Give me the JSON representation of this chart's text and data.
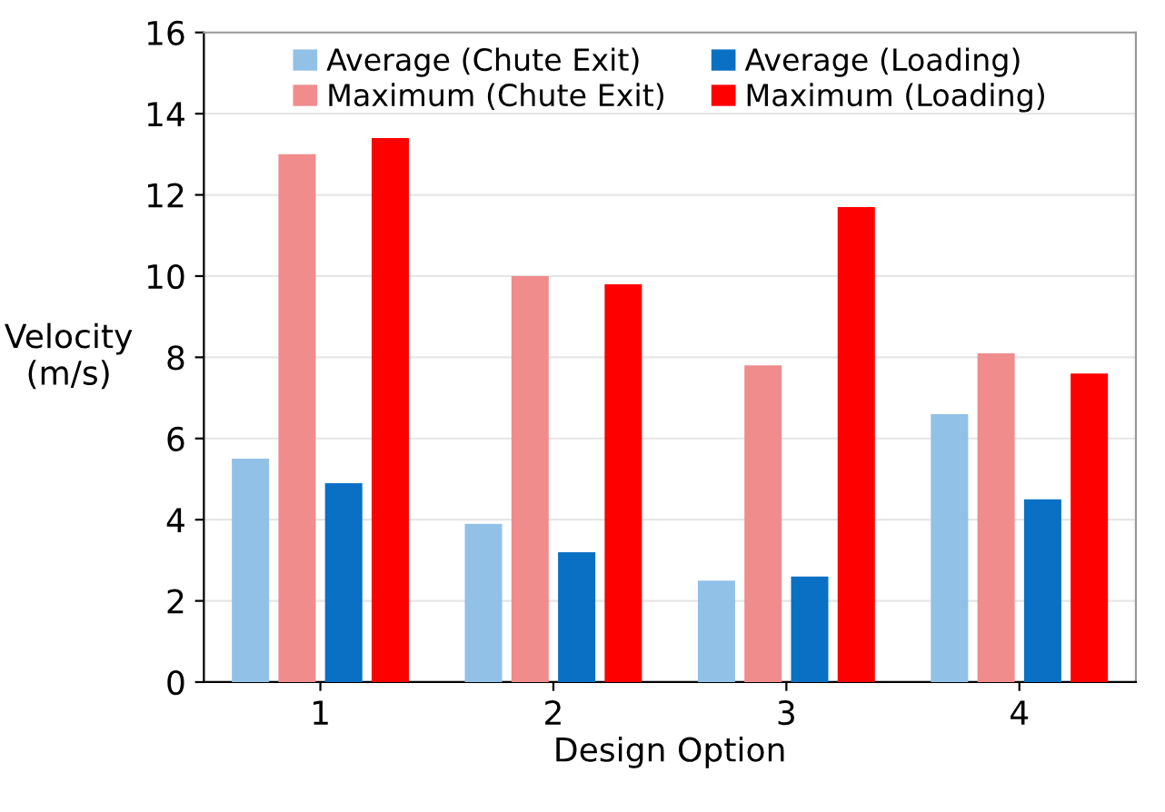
{
  "chart_data": {
    "type": "bar",
    "xlabel": "Design Option",
    "ylabel": "Velocity\n(m/s)",
    "categories": [
      "1",
      "2",
      "3",
      "4"
    ],
    "series": [
      {
        "name": "Average (Chute Exit)",
        "color": "#92c1e8",
        "values": [
          5.5,
          3.9,
          2.5,
          6.6
        ]
      },
      {
        "name": "Maximum (Chute Exit)",
        "color": "#f08c8c",
        "values": [
          13.0,
          10.0,
          7.8,
          8.1
        ]
      },
      {
        "name": "Average (Loading)",
        "color": "#0a70c4",
        "values": [
          4.9,
          3.2,
          2.6,
          4.5
        ]
      },
      {
        "name": "Maximum (Loading)",
        "color": "#ff0000",
        "values": [
          13.4,
          9.8,
          11.7,
          7.6
        ]
      }
    ],
    "ylim": [
      0,
      16
    ],
    "yticks": [
      0,
      2,
      4,
      6,
      8,
      10,
      12,
      14,
      16
    ],
    "grid": "y",
    "legend": "top"
  }
}
